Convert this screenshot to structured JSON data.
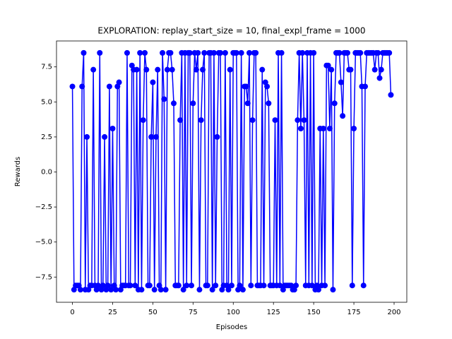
{
  "chart_data": {
    "type": "line",
    "title": "EXPLORATION: replay_start_size = 10, final_expl_frame = 1000",
    "x_label": "Episodes",
    "y_label": "Rewards",
    "color": "#0000ff",
    "x": [
      0,
      1,
      2,
      3,
      4,
      5,
      6,
      7,
      8,
      9,
      10,
      11,
      12,
      13,
      14,
      15,
      16,
      17,
      18,
      19,
      20,
      21,
      22,
      23,
      24,
      25,
      26,
      27,
      28,
      29,
      30,
      31,
      32,
      33,
      34,
      35,
      36,
      37,
      38,
      39,
      40,
      41,
      42,
      43,
      44,
      45,
      46,
      47,
      48,
      49,
      50,
      51,
      52,
      53,
      54,
      55,
      56,
      57,
      58,
      59,
      60,
      61,
      62,
      63,
      64,
      65,
      66,
      67,
      68,
      69,
      70,
      71,
      72,
      73,
      74,
      75,
      76,
      77,
      78,
      79,
      80,
      81,
      82,
      83,
      84,
      85,
      86,
      87,
      88,
      89,
      90,
      91,
      92,
      93,
      94,
      95,
      96,
      97,
      98,
      99,
      100,
      101,
      102,
      103,
      104,
      105,
      106,
      107,
      108,
      109,
      110,
      111,
      112,
      113,
      114,
      115,
      116,
      117,
      118,
      119,
      120,
      121,
      122,
      123,
      124,
      125,
      126,
      127,
      128,
      129,
      130,
      131,
      132,
      133,
      134,
      135,
      136,
      137,
      138,
      139,
      140,
      141,
      142,
      143,
      144,
      145,
      146,
      147,
      148,
      149,
      150,
      151,
      152,
      153,
      154,
      155,
      156,
      157,
      158,
      159,
      160,
      161,
      162,
      163,
      164,
      165,
      166,
      167,
      168,
      169,
      170,
      171,
      172,
      173,
      174,
      175,
      176,
      177,
      178,
      179,
      180,
      181,
      182,
      183,
      184,
      185,
      186,
      187,
      188,
      189,
      190,
      191,
      192,
      193,
      194,
      195,
      196,
      197,
      198
    ],
    "values": [
      6.1,
      -8.4,
      -8.1,
      -8.1,
      -8.1,
      -8.4,
      6.1,
      8.5,
      -8.4,
      2.5,
      -8.4,
      -8.1,
      -8.1,
      7.3,
      -8.1,
      -8.4,
      -8.1,
      8.5,
      -8.4,
      -8.1,
      2.5,
      -8.4,
      -8.1,
      6.1,
      -8.4,
      3.1,
      -8.1,
      -8.4,
      6.1,
      6.4,
      -8.4,
      -8.1,
      -8.1,
      -8.1,
      8.5,
      -8.1,
      -8.1,
      7.6,
      7.3,
      -8.1,
      7.3,
      -8.4,
      8.5,
      -8.4,
      3.7,
      8.5,
      7.3,
      -8.1,
      -8.1,
      2.5,
      6.4,
      -8.4,
      2.5,
      7.3,
      -8.1,
      -8.4,
      8.5,
      5.2,
      -8.4,
      7.3,
      8.5,
      8.5,
      7.3,
      4.9,
      -8.1,
      -8.1,
      -8.1,
      3.7,
      8.5,
      -8.4,
      8.5,
      -8.1,
      8.5,
      8.5,
      -8.1,
      4.9,
      8.5,
      7.3,
      8.5,
      -8.4,
      3.7,
      7.3,
      8.5,
      -8.1,
      -8.1,
      8.5,
      8.5,
      -8.4,
      8.5,
      -8.1,
      2.5,
      8.5,
      8.5,
      -8.4,
      -8.1,
      8.5,
      -8.1,
      -8.4,
      7.3,
      -8.1,
      8.5,
      8.5,
      8.5,
      -8.4,
      -8.1,
      8.5,
      -8.4,
      6.1,
      6.1,
      4.9,
      8.5,
      -8.1,
      3.7,
      8.5,
      8.5,
      -8.1,
      -8.1,
      -8.1,
      7.3,
      -8.1,
      6.4,
      6.1,
      4.9,
      -8.1,
      -8.1,
      -8.1,
      3.7,
      -8.1,
      8.5,
      -8.1,
      8.5,
      -8.4,
      -8.1,
      -8.1,
      -8.1,
      -8.1,
      -8.1,
      -8.4,
      -8.4,
      -8.1,
      3.7,
      8.5,
      3.1,
      8.5,
      3.7,
      -8.1,
      8.5,
      -8.1,
      8.5,
      -8.1,
      8.5,
      -8.4,
      -8.1,
      -8.4,
      3.1,
      -8.1,
      3.1,
      -8.1,
      7.6,
      7.6,
      3.1,
      7.3,
      -8.4,
      4.9,
      8.5,
      8.5,
      8.5,
      6.4,
      4.0,
      8.5,
      8.5,
      8.5,
      7.3,
      7.3,
      -8.1,
      3.1,
      8.5,
      8.5,
      8.5,
      8.5,
      6.1,
      -8.1,
      6.1,
      8.5,
      8.5,
      8.5,
      8.5,
      8.5,
      7.3,
      8.5,
      8.5,
      6.7,
      7.3,
      8.5,
      8.5,
      8.5,
      8.5,
      8.5,
      5.5
    ],
    "xlim": [
      -9.9,
      207.9
    ],
    "ylim": [
      -9.3,
      9.35
    ],
    "xticks": [
      0,
      25,
      50,
      75,
      100,
      125,
      150,
      175,
      200
    ],
    "yticks": [
      {
        "value": -7.5,
        "label": "−7.5"
      },
      {
        "value": -5,
        "label": "−5.0"
      },
      {
        "value": -2.5,
        "label": "−2.5"
      },
      {
        "value": 0,
        "label": "0.0"
      },
      {
        "value": 2.5,
        "label": "2.5"
      },
      {
        "value": 5,
        "label": "5.0"
      },
      {
        "value": 7.5,
        "label": "7.5"
      }
    ]
  }
}
